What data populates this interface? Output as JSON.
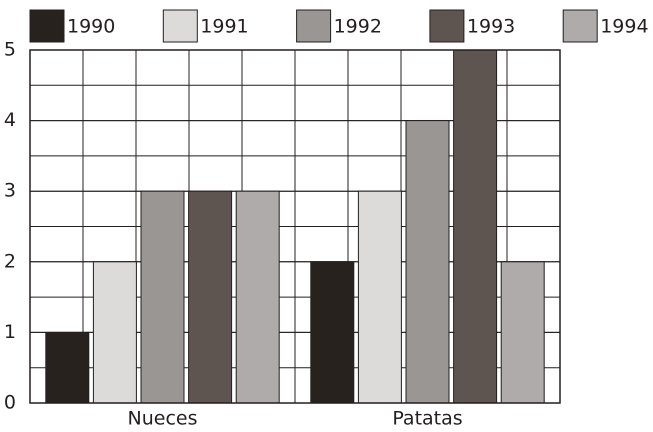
{
  "chart_data": {
    "type": "bar",
    "categories": [
      "Nueces",
      "Patatas"
    ],
    "series": [
      {
        "name": "1990",
        "color": "#27221e",
        "values": [
          1,
          2
        ]
      },
      {
        "name": "1991",
        "color": "#dcdbd9",
        "values": [
          2,
          3
        ]
      },
      {
        "name": "1992",
        "color": "#9a9693",
        "values": [
          3,
          4
        ]
      },
      {
        "name": "1993",
        "color": "#5e5550",
        "values": [
          3,
          5
        ]
      },
      {
        "name": "1994",
        "color": "#aeabaa",
        "values": [
          3,
          2
        ]
      }
    ],
    "ylim": [
      0,
      5
    ],
    "yticks": [
      0,
      1,
      2,
      3,
      4,
      5
    ],
    "grid": true,
    "legend": "top"
  }
}
